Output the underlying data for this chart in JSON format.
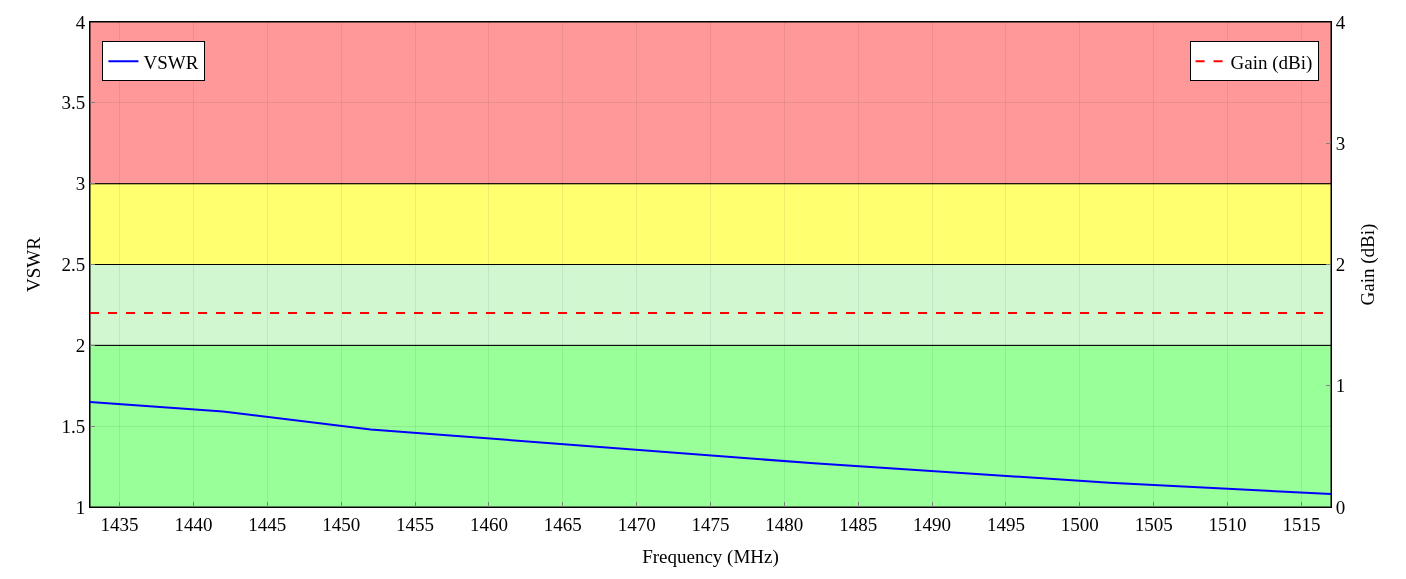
{
  "chart_data": {
    "type": "line",
    "xlabel": "Frequency (MHz)",
    "ylabel": "VSWR",
    "y2label": "Gain (dBi)",
    "xlim": [
      1433,
      1517
    ],
    "xticks": [
      1435,
      1440,
      1445,
      1450,
      1455,
      1460,
      1465,
      1470,
      1475,
      1480,
      1485,
      1490,
      1495,
      1500,
      1505,
      1510,
      1515
    ],
    "ylim": [
      1,
      4
    ],
    "yticks": [
      1,
      1.5,
      2,
      2.5,
      3,
      3.5,
      4
    ],
    "y2lim": [
      0,
      4
    ],
    "y2ticks": [
      0,
      1,
      2,
      3,
      4
    ],
    "grid": true,
    "legend": "top",
    "series": [
      {
        "name": "VSWR",
        "color": "#0000ff",
        "x": [
          1433,
          1442,
          1452,
          1482,
          1502,
          1517
        ],
        "values": [
          1.65,
          1.59,
          1.48,
          1.27,
          1.15,
          1.08
        ],
        "line_style": "solid"
      },
      {
        "name": "Gain (dBi)",
        "color": "#ff0000",
        "axis": "y2",
        "x": [
          1433,
          1517
        ],
        "values": [
          1.6,
          1.6
        ],
        "line_style": "dashed"
      }
    ],
    "bands": [
      {
        "axis": "y",
        "from": 1,
        "to": 2,
        "color": "#99ff99"
      },
      {
        "axis": "y",
        "from": 2,
        "to": 2.5,
        "color": "#d1f7d1"
      },
      {
        "axis": "y",
        "from": 2.5,
        "to": 3,
        "color": "#ffff70"
      },
      {
        "axis": "y",
        "from": 3,
        "to": 4,
        "color": "#ff9999"
      }
    ]
  }
}
